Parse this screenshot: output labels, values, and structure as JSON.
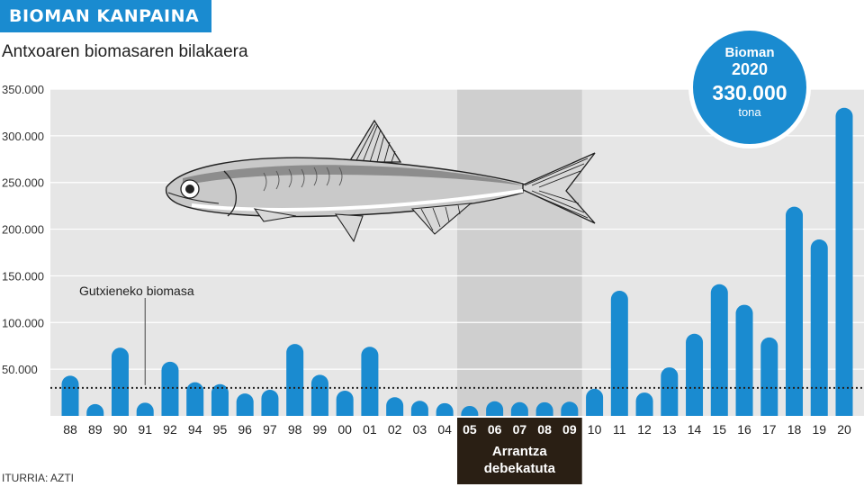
{
  "header": {
    "title": "BIOMAN KANPAINA",
    "subtitle": "Antxoaren biomasaren bilakaera"
  },
  "badge": {
    "line1": "Bioman",
    "line2": "2020",
    "value": "330.000",
    "unit": "tona"
  },
  "source": "ITURRIA: AZTI",
  "colors": {
    "bar": "#1a8bd0",
    "plot_bg": "#e6e6e6",
    "ban_bg": "#cfcfcf",
    "ban_label_bg": "#2a1f14"
  },
  "chart_data": {
    "type": "bar",
    "title": "Antxoaren biomasaren bilakaera",
    "xlabel": "",
    "ylabel": "",
    "categories": [
      "88",
      "89",
      "90",
      "91",
      "92",
      "94",
      "95",
      "96",
      "97",
      "98",
      "99",
      "00",
      "01",
      "02",
      "03",
      "04",
      "05",
      "06",
      "07",
      "08",
      "09",
      "10",
      "11",
      "12",
      "13",
      "14",
      "15",
      "16",
      "17",
      "18",
      "19",
      "20"
    ],
    "values": [
      43000,
      7000,
      73000,
      10000,
      58000,
      36000,
      34000,
      24000,
      28000,
      77000,
      44000,
      27000,
      74000,
      20000,
      14000,
      9000,
      3000,
      13000,
      11000,
      11000,
      12000,
      29000,
      134000,
      25000,
      52000,
      88000,
      141000,
      119000,
      84000,
      224000,
      189000,
      330000
    ],
    "yticks": [
      "50.000",
      "100.000",
      "150.000",
      "200.000",
      "250.000",
      "300.000",
      "350.000"
    ],
    "ytick_values": [
      50000,
      100000,
      150000,
      200000,
      250000,
      300000,
      350000
    ],
    "ylim": [
      0,
      350000
    ],
    "grid": true,
    "reference_line": {
      "value": 30000,
      "label": "Gutxieneko biomasa"
    },
    "highlight": {
      "from": "05",
      "to": "09",
      "label_line1": "Arrantza",
      "label_line2": "debekatuta"
    }
  }
}
